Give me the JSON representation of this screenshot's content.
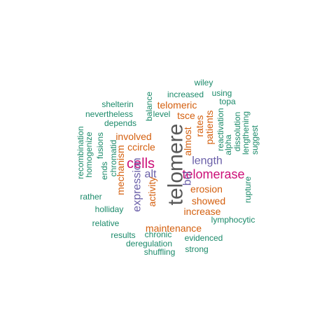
{
  "palette": {
    "gray": "#595959",
    "magenta": "#cc0f78",
    "purple": "#6a5fa8",
    "orange": "#d45f0e",
    "green": "#1b8a6a"
  },
  "words": [
    {
      "text": "telomere",
      "color": "gray"
    },
    {
      "text": "telomerase",
      "color": "magenta"
    },
    {
      "text": "cells",
      "color": "magenta"
    },
    {
      "text": "expression",
      "color": "purple"
    },
    {
      "text": "length",
      "color": "purple"
    },
    {
      "text": "alt",
      "color": "purple"
    },
    {
      "text": "bcl",
      "color": "purple"
    },
    {
      "text": "maintenance",
      "color": "orange"
    },
    {
      "text": "involved",
      "color": "orange"
    },
    {
      "text": "erosion",
      "color": "orange"
    },
    {
      "text": "showed",
      "color": "orange"
    },
    {
      "text": "increase",
      "color": "orange"
    },
    {
      "text": "telomeric",
      "color": "orange"
    },
    {
      "text": "ccircle",
      "color": "orange"
    },
    {
      "text": "tsce",
      "color": "orange"
    },
    {
      "text": "mechanism",
      "color": "orange"
    },
    {
      "text": "activity",
      "color": "orange"
    },
    {
      "text": "almost",
      "color": "orange"
    },
    {
      "text": "rates",
      "color": "orange"
    },
    {
      "text": "patients",
      "color": "orange"
    },
    {
      "text": "wiley",
      "color": "green"
    },
    {
      "text": "using",
      "color": "green"
    },
    {
      "text": "increased",
      "color": "green"
    },
    {
      "text": "topa",
      "color": "green"
    },
    {
      "text": "shelterin",
      "color": "green"
    },
    {
      "text": "balance",
      "color": "green"
    },
    {
      "text": "nevertheless",
      "color": "green"
    },
    {
      "text": "level",
      "color": "green"
    },
    {
      "text": "depends",
      "color": "green"
    },
    {
      "text": "reactivation",
      "color": "green"
    },
    {
      "text": "dissolution",
      "color": "green"
    },
    {
      "text": "alpha",
      "color": "green"
    },
    {
      "text": "lengthening",
      "color": "green"
    },
    {
      "text": "suggest",
      "color": "green"
    },
    {
      "text": "recombination",
      "color": "green"
    },
    {
      "text": "homogenize",
      "color": "green"
    },
    {
      "text": "fusions",
      "color": "green"
    },
    {
      "text": "chromatid",
      "color": "green"
    },
    {
      "text": "ends",
      "color": "green"
    },
    {
      "text": "rather",
      "color": "green"
    },
    {
      "text": "holliday",
      "color": "green"
    },
    {
      "text": "rupture",
      "color": "green"
    },
    {
      "text": "lymphocytic",
      "color": "green"
    },
    {
      "text": "relative",
      "color": "green"
    },
    {
      "text": "results",
      "color": "green"
    },
    {
      "text": "chronic",
      "color": "green"
    },
    {
      "text": "evidenced",
      "color": "green"
    },
    {
      "text": "deregulation",
      "color": "green"
    },
    {
      "text": "shuffling",
      "color": "green"
    },
    {
      "text": "strong",
      "color": "green"
    }
  ]
}
